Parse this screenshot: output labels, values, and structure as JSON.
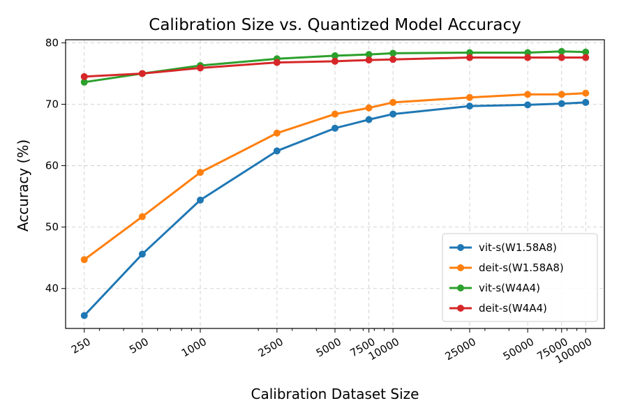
{
  "chart_data": {
    "type": "line",
    "title": "Calibration Size vs. Quantized Model Accuracy",
    "xlabel": "Calibration Dataset Size",
    "ylabel": "Accuracy (%)",
    "x_scale": "log",
    "x": [
      250,
      500,
      1000,
      2500,
      5000,
      7500,
      10000,
      25000,
      50000,
      75000,
      100000
    ],
    "x_tick_labels": [
      "250",
      "500",
      "1000",
      "2500",
      "5000",
      "7500",
      "10000",
      "25000",
      "50000",
      "75000",
      "100000"
    ],
    "xlim": [
      200,
      125000
    ],
    "ylim": [
      33.5,
      80.5
    ],
    "y_ticks": [
      40,
      50,
      60,
      70,
      80
    ],
    "grid": true,
    "legend_position": "lower-right",
    "series": [
      {
        "name": "vit-s(W1.58A8)",
        "color": "#1f77b4",
        "values": [
          35.6,
          45.6,
          54.4,
          62.4,
          66.1,
          67.5,
          68.4,
          69.7,
          69.9,
          70.1,
          70.3
        ]
      },
      {
        "name": "deit-s(W1.58A8)",
        "color": "#ff7f0e",
        "values": [
          44.7,
          51.7,
          58.9,
          65.3,
          68.4,
          69.4,
          70.3,
          71.1,
          71.6,
          71.6,
          71.8
        ]
      },
      {
        "name": "vit-s(W4A4)",
        "color": "#2ca02c",
        "values": [
          73.6,
          75.0,
          76.3,
          77.4,
          77.9,
          78.1,
          78.3,
          78.4,
          78.4,
          78.6,
          78.5
        ]
      },
      {
        "name": "deit-s(W4A4)",
        "color": "#d62728",
        "values": [
          74.5,
          75.0,
          75.9,
          76.8,
          77.0,
          77.2,
          77.3,
          77.6,
          77.6,
          77.6,
          77.6
        ]
      }
    ]
  }
}
